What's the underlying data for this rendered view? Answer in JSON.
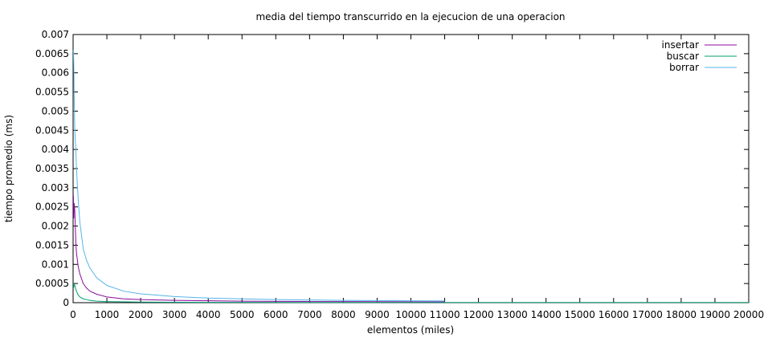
{
  "chart_data": {
    "type": "line",
    "title": "media del tiempo transcurrido en la ejecucion de una operacion",
    "xlabel": "elementos (miles)",
    "ylabel": "tiempo promedio (ms)",
    "xlim": [
      0,
      20000
    ],
    "ylim": [
      0,
      0.007
    ],
    "x_ticks": [
      "0",
      "1000",
      "2000",
      "3000",
      "4000",
      "5000",
      "6000",
      "7000",
      "8000",
      "9000",
      "10000",
      "11000",
      "12000",
      "13000",
      "14000",
      "15000",
      "16000",
      "17000",
      "18000",
      "19000",
      "20000"
    ],
    "y_ticks": [
      "0",
      "0.0005",
      "0.001",
      "0.0015",
      "0.002",
      "0.0025",
      "0.003",
      "0.0035",
      "0.004",
      "0.0045",
      "0.005",
      "0.0055",
      "0.006",
      "0.0065",
      "0.007"
    ],
    "grid": false,
    "legend_position": "top-right",
    "series": [
      {
        "name": "insertar",
        "color": "#8b0a9e",
        "x": [
          10,
          20,
          30,
          50,
          80,
          100,
          150,
          200,
          300,
          400,
          500,
          700,
          1000,
          1500,
          2000,
          3000,
          4000,
          5000,
          6000,
          7000,
          8000,
          9000,
          10000,
          11000
        ],
        "y": [
          0.0028,
          0.0022,
          0.0026,
          0.0024,
          0.0016,
          0.0013,
          0.00095,
          0.00075,
          0.0005,
          0.00038,
          0.0003,
          0.00022,
          0.00015,
          0.0001,
          8e-05,
          6e-05,
          5e-05,
          4e-05,
          3.5e-05,
          3e-05,
          2.8e-05,
          2.5e-05,
          2.3e-05,
          2.1e-05
        ]
      },
      {
        "name": "buscar",
        "color": "#009e73",
        "x": [
          10,
          20,
          30,
          50,
          80,
          100,
          150,
          200,
          300,
          400,
          500,
          700,
          1000,
          2000,
          3000,
          5000,
          7000,
          10000,
          12000,
          15000,
          20000
        ],
        "y": [
          0.0005,
          0.0004,
          0.00048,
          0.00045,
          0.00035,
          0.0003,
          0.0002,
          0.00015,
          0.0001,
          8e-05,
          6e-05,
          4e-05,
          3e-05,
          1.5e-05,
          1e-05,
          8e-06,
          6e-06,
          5e-06,
          4e-06,
          4e-06,
          4e-06
        ]
      },
      {
        "name": "borrar",
        "color": "#56b4e9",
        "x": [
          10,
          20,
          30,
          50,
          80,
          100,
          150,
          200,
          300,
          400,
          500,
          700,
          1000,
          1500,
          2000,
          3000,
          4000,
          5000,
          6000,
          7000,
          8000,
          9000,
          10000,
          11000
        ],
        "y": [
          0.0066,
          0.0062,
          0.0055,
          0.0045,
          0.004,
          0.0035,
          0.0027,
          0.0021,
          0.0014,
          0.0011,
          0.0009,
          0.00065,
          0.00045,
          0.0003,
          0.00023,
          0.00016,
          0.00012,
          0.0001,
          8e-05,
          7e-05,
          6e-05,
          5.5e-05,
          5e-05,
          4.5e-05
        ]
      }
    ]
  }
}
